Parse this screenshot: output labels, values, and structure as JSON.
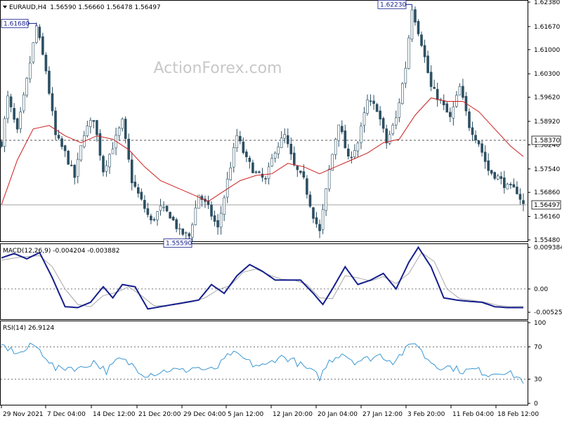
{
  "header": {
    "symbol": "EURAUD,H4",
    "ohlc": "1.56590 1.56660 1.56478 1.56497"
  },
  "watermark": "ActionForex.com",
  "colors": {
    "candle": "#2c4f62",
    "ma": "#cc1f1f",
    "macd": "#141e8c",
    "signal": "#a8a8a8",
    "rsi": "#3a97d4",
    "guide": "#777777",
    "frame": "#000000"
  },
  "chart_data": [
    {
      "type": "bar",
      "title": "EURAUD,H4",
      "subtitle": "1.56590 1.56660 1.56478 1.56497",
      "x_ticks": [
        "29 Nov 2021",
        "7 Dec 04:00",
        "14 Dec 12:00",
        "21 Dec 20:00",
        "29 Dec 04:00",
        "5 Jan 12:00",
        "12 Jan 20:00",
        "20 Jan 04:00",
        "27 Jan 12:00",
        "3 Feb 20:00",
        "11 Feb 04:00",
        "18 Feb 12:00"
      ],
      "y_ticks": [
        "1.62380",
        "1.61670",
        "1.61000",
        "1.60300",
        "1.59620",
        "1.58920",
        "1.58240",
        "1.57540",
        "1.56860",
        "1.56160",
        "1.55480"
      ],
      "ylim": [
        1.5548,
        1.6238
      ],
      "price_path": [
        [
          0,
          1.583
        ],
        [
          2,
          1.596
        ],
        [
          5,
          1.586
        ],
        [
          8,
          1.601
        ],
        [
          11,
          1.6168
        ],
        [
          14,
          1.604
        ],
        [
          17,
          1.585
        ],
        [
          20,
          1.58
        ],
        [
          23,
          1.573
        ],
        [
          26,
          1.586
        ],
        [
          29,
          1.59
        ],
        [
          32,
          1.575
        ],
        [
          35,
          1.582
        ],
        [
          38,
          1.589
        ],
        [
          41,
          1.572
        ],
        [
          44,
          1.566
        ],
        [
          47,
          1.56
        ],
        [
          50,
          1.564
        ],
        [
          53,
          1.562
        ],
        [
          56,
          1.557
        ],
        [
          59,
          1.5559
        ],
        [
          62,
          1.568
        ],
        [
          65,
          1.564
        ],
        [
          68,
          1.558
        ],
        [
          71,
          1.572
        ],
        [
          74,
          1.585
        ],
        [
          77,
          1.578
        ],
        [
          80,
          1.574
        ],
        [
          83,
          1.572
        ],
        [
          86,
          1.581
        ],
        [
          89,
          1.585
        ],
        [
          92,
          1.576
        ],
        [
          95,
          1.572
        ],
        [
          98,
          1.562
        ],
        [
          100,
          1.557
        ],
        [
          103,
          1.575
        ],
        [
          106,
          1.589
        ],
        [
          109,
          1.578
        ],
        [
          112,
          1.583
        ],
        [
          115,
          1.595
        ],
        [
          118,
          1.593
        ],
        [
          121,
          1.583
        ],
        [
          124,
          1.59
        ],
        [
          127,
          1.605
        ],
        [
          129,
          1.6223
        ],
        [
          132,
          1.612
        ],
        [
          135,
          1.599
        ],
        [
          138,
          1.595
        ],
        [
          141,
          1.59
        ],
        [
          144,
          1.599
        ],
        [
          147,
          1.588
        ],
        [
          150,
          1.583
        ],
        [
          153,
          1.575
        ],
        [
          156,
          1.573
        ],
        [
          159,
          1.57
        ],
        [
          162,
          1.569
        ],
        [
          164,
          1.565
        ]
      ],
      "moving_average": [
        [
          0,
          1.565
        ],
        [
          5,
          1.578
        ],
        [
          10,
          1.587
        ],
        [
          15,
          1.588
        ],
        [
          20,
          1.585
        ],
        [
          25,
          1.583
        ],
        [
          30,
          1.585
        ],
        [
          35,
          1.584
        ],
        [
          40,
          1.581
        ],
        [
          45,
          1.576
        ],
        [
          50,
          1.572
        ],
        [
          55,
          1.57
        ],
        [
          60,
          1.568
        ],
        [
          65,
          1.566
        ],
        [
          70,
          1.569
        ],
        [
          75,
          1.572
        ],
        [
          80,
          1.5735
        ],
        [
          85,
          1.574
        ],
        [
          90,
          1.577
        ],
        [
          95,
          1.576
        ],
        [
          100,
          1.574
        ],
        [
          105,
          1.576
        ],
        [
          110,
          1.578
        ],
        [
          115,
          1.58
        ],
        [
          120,
          1.583
        ],
        [
          125,
          1.584
        ],
        [
          130,
          1.591
        ],
        [
          135,
          1.596
        ],
        [
          140,
          1.595
        ],
        [
          145,
          1.595
        ],
        [
          150,
          1.592
        ],
        [
          155,
          1.587
        ],
        [
          160,
          1.582
        ],
        [
          164,
          1.579
        ]
      ],
      "h_lines": [
        1.5837,
        1.56497
      ],
      "level_tags": [
        "1.58370",
        "1.56497"
      ],
      "annotations": [
        "1.61680",
        "1.62230",
        "1.55590"
      ]
    },
    {
      "type": "line",
      "title": "MACD(12,26,9) -0.004204 -0.003882",
      "y_ticks": [
        "0.009384",
        "0.00",
        "-0.005252"
      ],
      "ylim": [
        -0.0065,
        0.0098
      ],
      "series": [
        {
          "values": [
            [
              0,
              0.007
            ],
            [
              4,
              0.008
            ],
            [
              8,
              0.0068
            ],
            [
              12,
              0.0082
            ],
            [
              16,
              0.0025
            ],
            [
              20,
              -0.004
            ],
            [
              24,
              -0.0042
            ],
            [
              28,
              -0.003
            ],
            [
              32,
              0.0005
            ],
            [
              35,
              -0.002
            ],
            [
              38,
              0.001
            ],
            [
              42,
              0.0005
            ],
            [
              46,
              -0.0045
            ],
            [
              50,
              -0.004
            ],
            [
              54,
              -0.0035
            ],
            [
              58,
              -0.003
            ],
            [
              62,
              -0.0025
            ],
            [
              66,
              0.001
            ],
            [
              70,
              -0.001
            ],
            [
              74,
              0.003
            ],
            [
              78,
              0.0055
            ],
            [
              82,
              0.004
            ],
            [
              86,
              0.002
            ],
            [
              90,
              0.002
            ],
            [
              94,
              0.002
            ],
            [
              98,
              -0.001
            ],
            [
              101,
              -0.0035
            ],
            [
              104,
              0.0
            ],
            [
              108,
              0.005
            ],
            [
              112,
              0.001
            ],
            [
              116,
              0.002
            ],
            [
              120,
              0.0035
            ],
            [
              124,
              0.0
            ],
            [
              128,
              0.006
            ],
            [
              131,
              0.0094
            ],
            [
              135,
              0.005
            ],
            [
              139,
              -0.002
            ],
            [
              143,
              -0.0025
            ],
            [
              147,
              -0.0028
            ],
            [
              151,
              -0.003
            ],
            [
              155,
              -0.004
            ],
            [
              159,
              -0.0042
            ],
            [
              164,
              -0.0042
            ]
          ]
        },
        {
          "values": [
            [
              0,
              0.0065
            ],
            [
              6,
              0.0072
            ],
            [
              12,
              0.0075
            ],
            [
              16,
              0.005
            ],
            [
              20,
              0.0
            ],
            [
              24,
              -0.0035
            ],
            [
              28,
              -0.004
            ],
            [
              32,
              -0.0015
            ],
            [
              36,
              -0.0008
            ],
            [
              40,
              0.0005
            ],
            [
              44,
              -0.0015
            ],
            [
              48,
              -0.0038
            ],
            [
              52,
              -0.0038
            ],
            [
              56,
              -0.0034
            ],
            [
              60,
              -0.0029
            ],
            [
              64,
              -0.002
            ],
            [
              68,
              -0.0002
            ],
            [
              72,
              0.0008
            ],
            [
              76,
              0.0038
            ],
            [
              80,
              0.0045
            ],
            [
              84,
              0.0032
            ],
            [
              88,
              0.0022
            ],
            [
              92,
              0.002
            ],
            [
              96,
              0.001
            ],
            [
              100,
              -0.002
            ],
            [
              104,
              -0.0022
            ],
            [
              108,
              0.003
            ],
            [
              112,
              0.0025
            ],
            [
              116,
              0.0018
            ],
            [
              120,
              0.0028
            ],
            [
              124,
              0.0012
            ],
            [
              128,
              0.0035
            ],
            [
              132,
              0.0082
            ],
            [
              136,
              0.0062
            ],
            [
              140,
              0.0
            ],
            [
              144,
              -0.0022
            ],
            [
              148,
              -0.0026
            ],
            [
              152,
              -0.003
            ],
            [
              156,
              -0.0037
            ],
            [
              160,
              -0.004
            ],
            [
              164,
              -0.0039
            ]
          ]
        }
      ]
    },
    {
      "type": "line",
      "title": "RSI(14) 26.9124",
      "y_ticks": [
        "100",
        "70",
        "30",
        "0"
      ],
      "ylim": [
        0,
        100
      ],
      "series": [
        {
          "values": [
            [
              0,
              72
            ],
            [
              3,
              66
            ],
            [
              6,
              62
            ],
            [
              10,
              73
            ],
            [
              14,
              58
            ],
            [
              17,
              42
            ],
            [
              21,
              45
            ],
            [
              25,
              43
            ],
            [
              29,
              52
            ],
            [
              33,
              40
            ],
            [
              37,
              55
            ],
            [
              41,
              48
            ],
            [
              45,
              36
            ],
            [
              49,
              38
            ],
            [
              53,
              42
            ],
            [
              57,
              40
            ],
            [
              61,
              45
            ],
            [
              65,
              40
            ],
            [
              68,
              45
            ],
            [
              72,
              62
            ],
            [
              75,
              58
            ],
            [
              79,
              48
            ],
            [
              83,
              46
            ],
            [
              87,
              58
            ],
            [
              91,
              55
            ],
            [
              95,
              45
            ],
            [
              98,
              38
            ],
            [
              100,
              32
            ],
            [
              103,
              52
            ],
            [
              107,
              63
            ],
            [
              111,
              52
            ],
            [
              115,
              55
            ],
            [
              119,
              60
            ],
            [
              123,
              52
            ],
            [
              127,
              66
            ],
            [
              130,
              77
            ],
            [
              133,
              58
            ],
            [
              137,
              46
            ],
            [
              141,
              45
            ],
            [
              145,
              40
            ],
            [
              149,
              42
            ],
            [
              153,
              36
            ],
            [
              157,
              40
            ],
            [
              161,
              35
            ],
            [
              164,
              28
            ]
          ]
        }
      ]
    }
  ]
}
